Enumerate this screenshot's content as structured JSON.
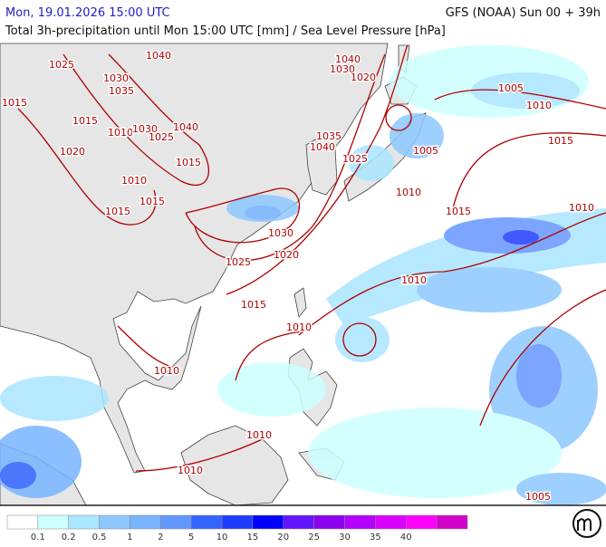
{
  "header": {
    "date": "Mon, 19.01.2026 15:00 UTC",
    "model": "GFS (NOAA) Sun 00 + 39h",
    "subtitle": "Total 3h-precipitation until Mon 15:00 UTC [mm] / Sea Level Pressure [hPa]"
  },
  "isobar_labels": [
    1040,
    1025,
    1030,
    1035,
    1015,
    1015,
    1010,
    1030,
    1025,
    1040,
    1020,
    1015,
    1010,
    1015,
    1015,
    1030,
    1020,
    1025,
    1015,
    1010,
    1010,
    1010,
    1010,
    1040,
    1030,
    1020,
    1035,
    1040,
    1025,
    1005,
    1010,
    1005,
    1010,
    1015,
    1015,
    1010,
    1010,
    1005
  ],
  "colorbar": {
    "colors": [
      "#ffffff",
      "#ccffff",
      "#aae6ff",
      "#8cc8ff",
      "#78b4ff",
      "#6496ff",
      "#3264ff",
      "#1e3cff",
      "#0000ff",
      "#6414ff",
      "#8c00f0",
      "#b400ff",
      "#dc00ff",
      "#ff00ff",
      "#d200c8"
    ],
    "labels": [
      "0.1",
      "0.2",
      "0.5",
      "1",
      "2",
      "5",
      "10",
      "15",
      "20",
      "25",
      "30",
      "35",
      "40"
    ]
  }
}
